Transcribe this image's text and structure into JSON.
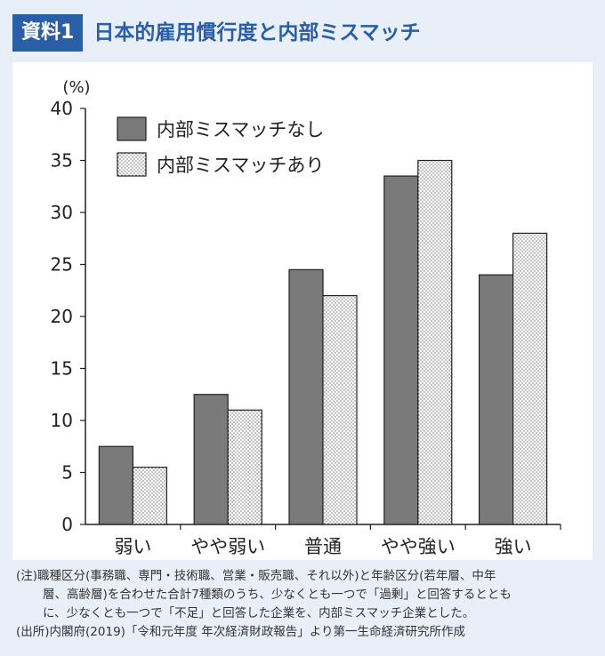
{
  "header": {
    "badge": "資料1",
    "title": "日本的雇用慣行度と内部ミスマッチ"
  },
  "chart_data": {
    "type": "bar",
    "ylabel": "(%)",
    "ylim": [
      0,
      40
    ],
    "yticks": [
      "0",
      "5",
      "10",
      "15",
      "20",
      "25",
      "30",
      "35",
      "40"
    ],
    "categories": [
      "弱い",
      "やや弱い",
      "普通",
      "やや強い",
      "強い"
    ],
    "series": [
      {
        "name": "内部ミスマッチなし",
        "values": [
          7.5,
          12.5,
          24.5,
          33.5,
          24
        ],
        "color": "#7a7a7a",
        "pattern": "solid"
      },
      {
        "name": "内部ミスマッチあり",
        "values": [
          5.5,
          11,
          22,
          35,
          28
        ],
        "color": "#ffffff",
        "pattern": "dotted"
      }
    ],
    "legend": "top-left",
    "grid": false
  },
  "notes": {
    "line1": "(注)職種区分(事務職、専門・技術職、営業・販売職、それ以外)と年齢区分(若年層、中年",
    "line2": "層、高齢層)を合わせた合計7種類のうち、少なくとも一つで「過剰」と回答するととも",
    "line3": "に、少なくとも一つで「不足」と回答した企業を、内部ミスマッチ企業とした。",
    "line4": "(出所)内閣府(2019)「令和元年度 年次経済財政報告」より第一生命経済研究所作成"
  }
}
